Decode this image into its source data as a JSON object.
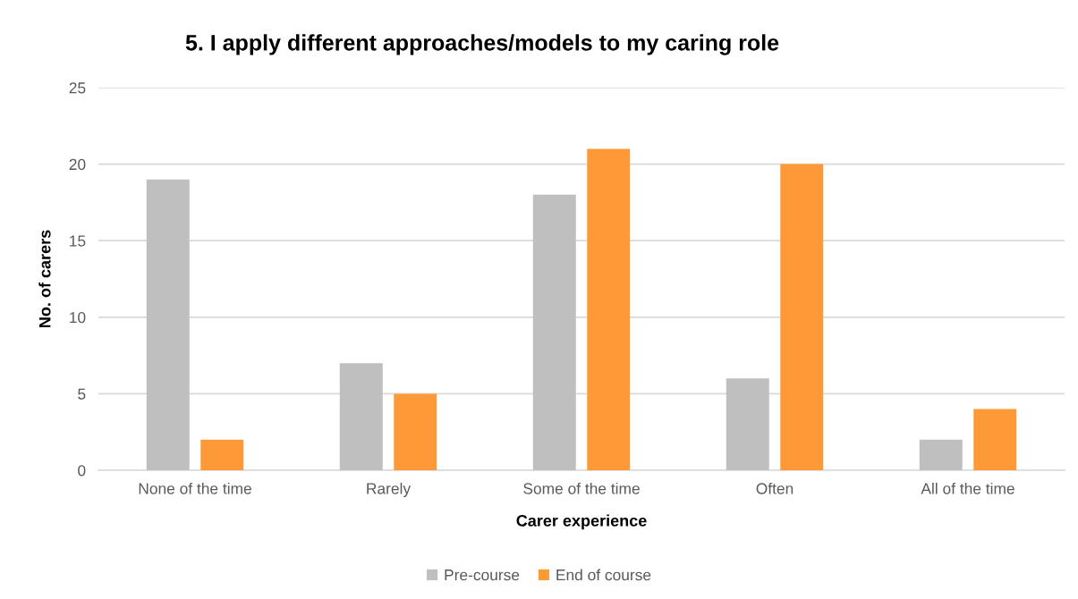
{
  "chart_data": {
    "type": "bar",
    "title": "5. I apply different approaches/models to my caring role",
    "xlabel": "Carer experience",
    "ylabel": "No. of carers",
    "categories": [
      "None of the time",
      "Rarely",
      "Some of the time",
      "Often",
      "All of the time"
    ],
    "series": [
      {
        "name": "Pre-course",
        "color": "#bfbfbf",
        "values": [
          19,
          7,
          18,
          6,
          2
        ]
      },
      {
        "name": "End of course",
        "color": "#fd9a37",
        "values": [
          2,
          5,
          21,
          20,
          4
        ]
      }
    ],
    "ylim": [
      0,
      25
    ],
    "yticks": [
      0,
      5,
      10,
      15,
      20,
      25
    ],
    "grid": "y",
    "legend": "bottom"
  }
}
